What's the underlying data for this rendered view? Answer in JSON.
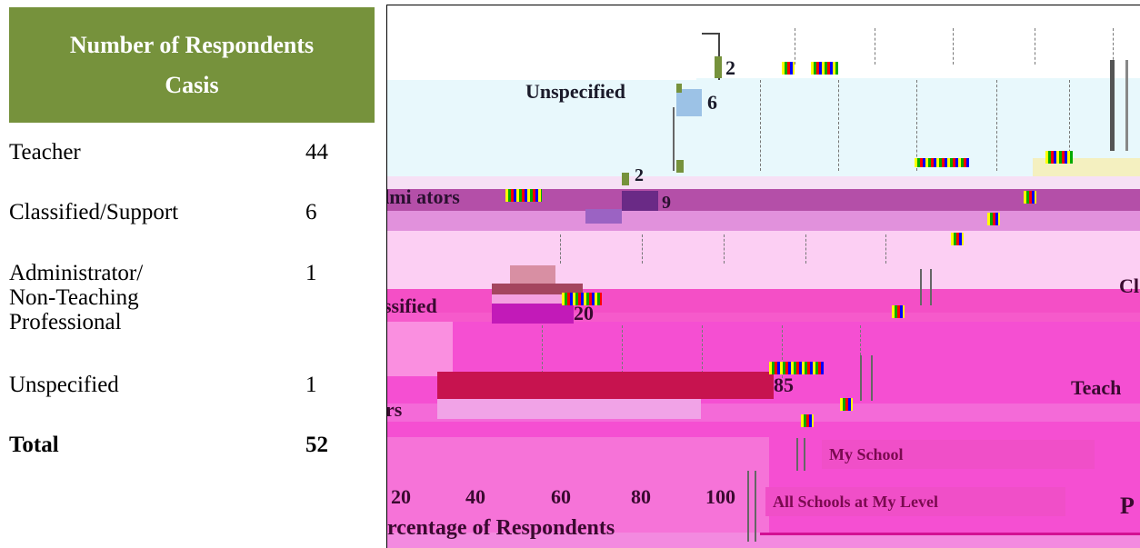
{
  "table": {
    "header_line1": "Number of Respondents",
    "header_line2": "Casis",
    "rows": [
      {
        "label": "Teacher",
        "value": "44"
      },
      {
        "label": "Classified/Support",
        "value": "6"
      },
      {
        "label": "Administrator/\nNon-Teaching\nProfessional",
        "value": "1"
      },
      {
        "label": "Unspecified",
        "value": "1"
      },
      {
        "label": "Total",
        "value": "52"
      }
    ]
  },
  "chart": {
    "labels": {
      "unspecified": "Unspecified",
      "administrators": "dmi  ators",
      "classified": "ssified",
      "teachers_left": "rs",
      "teachers_right": "Teach",
      "classified_right": "Cl",
      "percent_right": "P"
    },
    "values": {
      "unspecified_top": "2",
      "unspecified_mid": "6",
      "admin_top": "2",
      "admin_mid": "9",
      "classified_mid": "20",
      "teachers_mid": "85"
    },
    "x_ticks": [
      "20",
      "40",
      "60",
      "80",
      "100"
    ],
    "x_axis_label": "rcentage of Respondents",
    "legend": {
      "my_school": "My School",
      "all_schools": "All Schools at My Level"
    },
    "colors": {
      "header_green": "#76923c",
      "teacher_bar": "#c7134f",
      "classified_bar": "#c21ab8",
      "admin_bar": "#6a2a86",
      "unspecified_bar": "#9cc2e6",
      "small_green": "#76923c",
      "pink_band": "#f24fd6",
      "light_cyan": "#e8f8fc"
    }
  }
}
